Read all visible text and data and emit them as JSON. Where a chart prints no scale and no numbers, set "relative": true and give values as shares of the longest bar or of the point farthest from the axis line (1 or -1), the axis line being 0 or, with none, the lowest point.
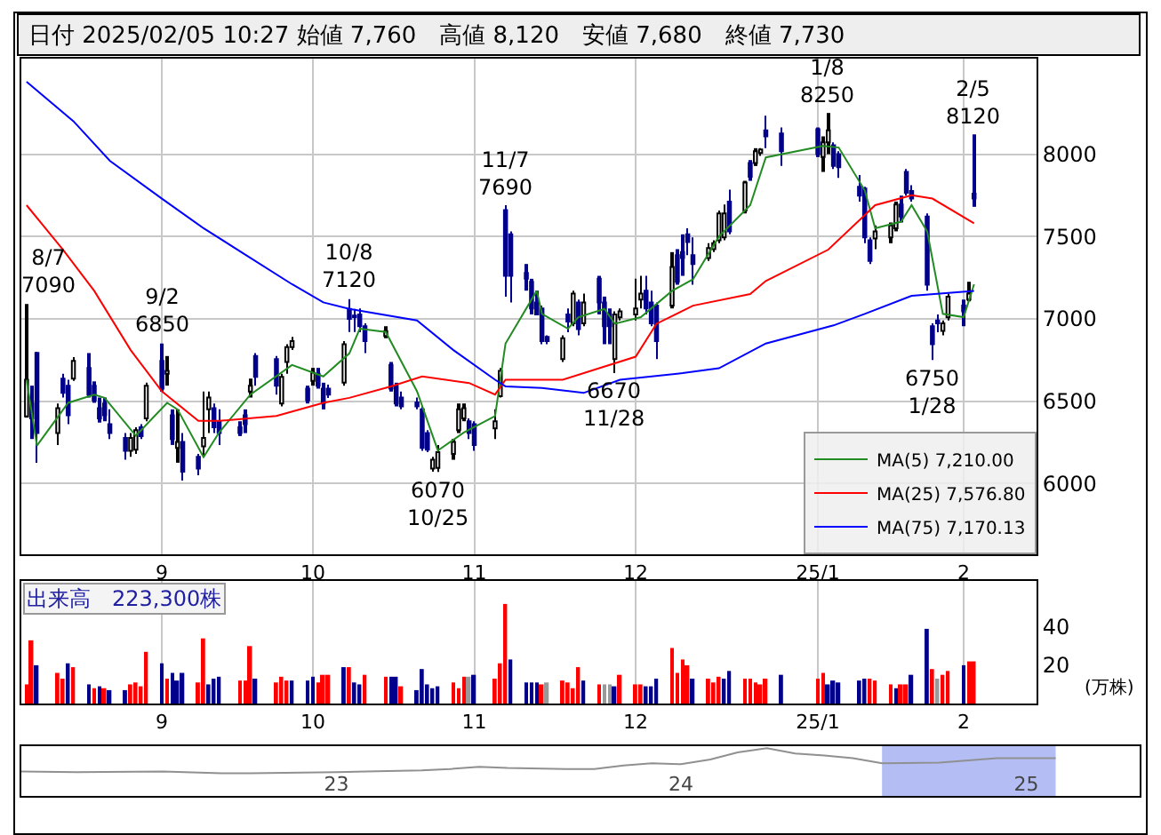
{
  "chart_data": [
    {
      "type": "candlestick",
      "title": "日付 2025/02/05 10:27 始値 7,760　高値 8,120　安値 7,680　終値 7,730",
      "x": [
        "2024-08-07",
        "2024-08-08",
        "2024-08-09",
        "2024-08-13",
        "2024-08-14",
        "2024-08-15",
        "2024-08-16",
        "2024-08-19",
        "2024-08-20",
        "2024-08-21",
        "2024-08-22",
        "2024-08-23",
        "2024-08-26",
        "2024-08-27",
        "2024-08-28",
        "2024-08-29",
        "2024-08-30",
        "2024-09-02",
        "2024-09-03",
        "2024-09-04",
        "2024-09-05",
        "2024-09-06",
        "2024-09-09",
        "2024-09-10",
        "2024-09-11",
        "2024-09-12",
        "2024-09-13",
        "2024-09-17",
        "2024-09-18",
        "2024-09-19",
        "2024-09-20",
        "2024-09-24",
        "2024-09-25",
        "2024-09-26",
        "2024-09-27",
        "2024-09-30",
        "2024-10-01",
        "2024-10-02",
        "2024-10-03",
        "2024-10-04",
        "2024-10-07",
        "2024-10-08",
        "2024-10-09",
        "2024-10-10",
        "2024-10-11",
        "2024-10-15",
        "2024-10-16",
        "2024-10-17",
        "2024-10-18",
        "2024-10-21",
        "2024-10-22",
        "2024-10-23",
        "2024-10-24",
        "2024-10-25",
        "2024-10-28",
        "2024-10-29",
        "2024-10-30",
        "2024-10-31",
        "2024-11-01",
        "2024-11-05",
        "2024-11-06",
        "2024-11-07",
        "2024-11-08",
        "2024-11-11",
        "2024-11-12",
        "2024-11-13",
        "2024-11-14",
        "2024-11-15",
        "2024-11-18",
        "2024-11-19",
        "2024-11-20",
        "2024-11-21",
        "2024-11-22",
        "2024-11-25",
        "2024-11-26",
        "2024-11-27",
        "2024-11-28",
        "2024-11-29",
        "2024-12-02",
        "2024-12-03",
        "2024-12-04",
        "2024-12-05",
        "2024-12-06",
        "2024-12-09",
        "2024-12-10",
        "2024-12-11",
        "2024-12-12",
        "2024-12-13",
        "2024-12-16",
        "2024-12-17",
        "2024-12-18",
        "2024-12-19",
        "2024-12-20",
        "2024-12-23",
        "2024-12-24",
        "2024-12-25",
        "2024-12-26",
        "2024-12-27",
        "2024-12-30",
        "2025-01-06",
        "2025-01-07",
        "2025-01-08",
        "2025-01-09",
        "2025-01-10",
        "2025-01-14",
        "2025-01-15",
        "2025-01-16",
        "2025-01-17",
        "2025-01-20",
        "2025-01-21",
        "2025-01-22",
        "2025-01-23",
        "2025-01-24",
        "2025-01-27",
        "2025-01-28",
        "2025-01-29",
        "2025-01-30",
        "2025-01-31",
        "2025-02-03",
        "2025-02-04",
        "2025-02-05"
      ],
      "ohlc": [
        [
          6407,
          7090,
          6400,
          6630
        ],
        [
          6486,
          6594,
          6270,
          6396
        ],
        [
          6793,
          6800,
          6125,
          6306
        ],
        [
          6306,
          6486,
          6234,
          6457
        ],
        [
          6637,
          6666,
          6522,
          6551
        ],
        [
          6594,
          6630,
          6360,
          6414
        ],
        [
          6637,
          6767,
          6623,
          6745
        ],
        [
          6702,
          6792,
          6522,
          6540
        ],
        [
          6594,
          6620,
          6490,
          6504
        ],
        [
          6457,
          6522,
          6370,
          6396
        ],
        [
          6486,
          6522,
          6378,
          6414
        ],
        [
          6360,
          6450,
          6270,
          6306
        ],
        [
          6277,
          6306,
          6144,
          6198
        ],
        [
          6198,
          6306,
          6162,
          6277
        ],
        [
          6205,
          6342,
          6180,
          6324
        ],
        [
          6342,
          6360,
          6270,
          6288
        ],
        [
          6396,
          6612,
          6378,
          6594
        ],
        [
          6745,
          6850,
          6558,
          6576
        ],
        [
          6666,
          6774,
          6594,
          6684
        ],
        [
          6414,
          6450,
          6234,
          6270
        ],
        [
          6216,
          6450,
          6126,
          6252
        ],
        [
          6252,
          6306,
          6018,
          6072
        ],
        [
          6162,
          6180,
          6050,
          6090
        ],
        [
          6226,
          6558,
          6162,
          6277
        ],
        [
          6450,
          6558,
          6306,
          6522
        ],
        [
          6457,
          6486,
          6306,
          6342
        ],
        [
          6378,
          6450,
          6234,
          6306
        ],
        [
          6342,
          6378,
          6288,
          6306
        ],
        [
          6414,
          6450,
          6306,
          6360
        ],
        [
          6558,
          6637,
          6522,
          6594
        ],
        [
          6774,
          6792,
          6594,
          6648
        ],
        [
          6756,
          6774,
          6540,
          6594
        ],
        [
          6486,
          6666,
          6468,
          6648
        ],
        [
          6738,
          6846,
          6666,
          6828
        ],
        [
          6828,
          6890,
          6810,
          6864
        ],
        [
          6576,
          6594,
          6486,
          6504
        ],
        [
          6623,
          6702,
          6594,
          6673
        ],
        [
          6666,
          6702,
          6576,
          6594
        ],
        [
          6576,
          6612,
          6450,
          6486
        ],
        [
          6576,
          6600,
          6520,
          6540
        ],
        [
          6612,
          6864,
          6594,
          6846
        ],
        [
          7060,
          7120,
          6920,
          7000
        ],
        [
          7020,
          7060,
          6920,
          7010
        ],
        [
          7027,
          7063,
          6918,
          6955
        ],
        [
          6955,
          6973,
          6792,
          6864
        ],
        [
          6896,
          6955,
          6882,
          6925
        ],
        [
          6720,
          6738,
          6558,
          6576
        ],
        [
          6594,
          6612,
          6468,
          6486
        ],
        [
          6522,
          6558,
          6450,
          6468
        ],
        [
          6493,
          6522,
          6450,
          6468
        ],
        [
          6450,
          6468,
          6198,
          6216
        ],
        [
          6306,
          6324,
          6190,
          6205
        ],
        [
          6090,
          6162,
          6072,
          6144
        ],
        [
          6094,
          6234,
          6070,
          6190
        ],
        [
          6180,
          6270,
          6144,
          6252
        ],
        [
          6324,
          6486,
          6306,
          6450
        ],
        [
          6396,
          6486,
          6378,
          6457
        ],
        [
          6378,
          6396,
          6270,
          6306
        ],
        [
          6360,
          6378,
          6198,
          6234
        ],
        [
          6334,
          6450,
          6270,
          6378
        ],
        [
          6530,
          6702,
          6522,
          6684
        ],
        [
          7660,
          7690,
          7135,
          7261
        ],
        [
          7513,
          7531,
          7099,
          7261
        ],
        [
          7279,
          7333,
          7171,
          7243
        ],
        [
          7225,
          7243,
          7027,
          7063
        ],
        [
          7099,
          7171,
          7027,
          7027
        ],
        [
          7063,
          7081,
          6846,
          6864
        ],
        [
          6890,
          6900,
          6846,
          6864
        ],
        [
          6756,
          6900,
          6738,
          6882
        ],
        [
          7027,
          7063,
          6918,
          6983
        ],
        [
          6973,
          7171,
          6955,
          7153
        ],
        [
          7099,
          7117,
          6900,
          6937
        ],
        [
          6973,
          7153,
          6955,
          7099
        ],
        [
          7243,
          7261,
          7027,
          7099
        ],
        [
          7099,
          7135,
          6846,
          6955
        ],
        [
          7027,
          7063,
          6846,
          6955
        ],
        [
          6756,
          7045,
          6670,
          7027
        ],
        [
          7009,
          7063,
          6990,
          7045
        ],
        [
          7027,
          7243,
          6990,
          7063
        ],
        [
          7117,
          7261,
          7063,
          7153
        ],
        [
          7171,
          7261,
          7027,
          7063
        ],
        [
          7099,
          7171,
          6955,
          6973
        ],
        [
          7081,
          7099,
          6756,
          6864
        ],
        [
          7081,
          7405,
          7063,
          7315
        ],
        [
          7387,
          7423,
          7207,
          7225
        ],
        [
          7405,
          7513,
          7261,
          7369
        ],
        [
          7513,
          7550,
          7387,
          7466
        ],
        [
          7387,
          7495,
          7207,
          7333
        ],
        [
          7369,
          7459,
          7351,
          7430
        ],
        [
          7423,
          7477,
          7405,
          7459
        ],
        [
          7477,
          7658,
          7459,
          7640
        ],
        [
          7495,
          7694,
          7477,
          7640
        ],
        [
          7712,
          7784,
          7513,
          7531
        ],
        [
          7658,
          7838,
          7640,
          7827
        ],
        [
          7946,
          7964,
          7838,
          7863
        ],
        [
          7946,
          8036,
          7928,
          8018
        ],
        [
          8007,
          8036,
          7990,
          8029
        ],
        [
          8144,
          8234,
          8036,
          8108
        ],
        [
          8126,
          8162,
          7928,
          8018
        ],
        [
          8151,
          8162,
          7982,
          8000
        ],
        [
          7982,
          8108,
          7892,
          8072
        ],
        [
          8072,
          8250,
          8000,
          8144
        ],
        [
          8054,
          8072,
          7910,
          7928
        ],
        [
          8000,
          8018,
          7856,
          7921
        ],
        [
          7802,
          7874,
          7712,
          7748
        ],
        [
          7791,
          7802,
          7459,
          7495
        ],
        [
          7477,
          7495,
          7333,
          7351
        ],
        [
          7488,
          7567,
          7423,
          7531
        ],
        [
          7495,
          7585,
          7459,
          7567
        ],
        [
          7549,
          7712,
          7531,
          7694
        ],
        [
          7694,
          7748,
          7585,
          7621
        ],
        [
          7892,
          7910,
          7748,
          7766
        ],
        [
          7776,
          7812,
          7712,
          7730
        ],
        [
          7621,
          7640,
          7171,
          7207
        ],
        [
          6955,
          6973,
          6750,
          6846
        ],
        [
          6990,
          7027,
          6918,
          6973
        ],
        [
          6926,
          6990,
          6900,
          6973
        ],
        [
          7009,
          7153,
          6990,
          7135
        ],
        [
          7081,
          7117,
          6955,
          7045
        ],
        [
          7117,
          7225,
          7106,
          7153
        ],
        [
          7760,
          8120,
          7680,
          7730
        ]
      ],
      "series": [
        {
          "name": "MA(5) 7,210.00",
          "color": "#228b22",
          "type": "line",
          "x": [
            "2024-08-07",
            "2024-08-09",
            "2024-08-15",
            "2024-08-20",
            "2024-08-22",
            "2024-08-28",
            "2024-09-03",
            "2024-09-05",
            "2024-09-10",
            "2024-09-13",
            "2024-09-19",
            "2024-09-27",
            "2024-10-03",
            "2024-10-08",
            "2024-10-10",
            "2024-10-15",
            "2024-10-21",
            "2024-10-25",
            "2024-10-30",
            "2024-11-05",
            "2024-11-07",
            "2024-11-13",
            "2024-11-14",
            "2024-11-19",
            "2024-11-21",
            "2024-11-26",
            "2024-11-28",
            "2024-12-03",
            "2024-12-09",
            "2024-12-13",
            "2024-12-18",
            "2024-12-24",
            "2024-12-27",
            "2025-01-07",
            "2025-01-10",
            "2025-01-15",
            "2025-01-17",
            "2025-01-22",
            "2025-01-24",
            "2025-01-27",
            "2025-01-30",
            "2025-02-03",
            "2025-02-05"
          ],
          "values": [
            6630,
            6230,
            6490,
            6540,
            6520,
            6290,
            6490,
            6450,
            6160,
            6310,
            6540,
            6720,
            6650,
            6790,
            6940,
            6920,
            6560,
            6200,
            6310,
            6410,
            6850,
            7170,
            7030,
            6940,
            7010,
            7060,
            6970,
            7010,
            7170,
            7240,
            7500,
            7690,
            7980,
            8050,
            8040,
            7780,
            7550,
            7590,
            7690,
            7530,
            7030,
            7010,
            7210
          ]
        },
        {
          "name": "MA(25) 7,576.80",
          "color": "#ff0000",
          "type": "line",
          "x": [
            "2024-08-07",
            "2024-08-14",
            "2024-08-20",
            "2024-08-27",
            "2024-09-02",
            "2024-09-09",
            "2024-09-13",
            "2024-09-24",
            "2024-10-03",
            "2024-10-08",
            "2024-10-16",
            "2024-10-22",
            "2024-10-31",
            "2024-11-05",
            "2024-11-07",
            "2024-11-18",
            "2024-11-25",
            "2024-12-02",
            "2024-12-06",
            "2024-12-13",
            "2024-12-24",
            "2024-12-27",
            "2025-01-08",
            "2025-01-14",
            "2025-01-17",
            "2025-01-24",
            "2025-01-28",
            "2025-02-05"
          ],
          "values": [
            7690,
            7420,
            7170,
            6810,
            6560,
            6380,
            6380,
            6410,
            6490,
            6520,
            6590,
            6650,
            6610,
            6540,
            6630,
            6630,
            6700,
            6770,
            6970,
            7080,
            7150,
            7230,
            7420,
            7600,
            7690,
            7750,
            7730,
            7580
          ]
        },
        {
          "name": "MA(75) 7,170.13",
          "color": "#0000ff",
          "type": "line",
          "x": [
            "2024-08-07",
            "2024-08-16",
            "2024-08-23",
            "2024-09-02",
            "2024-09-10",
            "2024-09-18",
            "2024-09-27",
            "2024-10-03",
            "2024-10-08",
            "2024-10-21",
            "2024-10-28",
            "2024-11-05",
            "2024-11-07",
            "2024-11-14",
            "2024-11-22",
            "2024-11-29",
            "2024-12-11",
            "2024-12-18",
            "2024-12-27",
            "2025-01-09",
            "2025-01-15",
            "2025-01-24",
            "2025-02-05"
          ],
          "values": [
            8440,
            8200,
            7960,
            7730,
            7550,
            7390,
            7210,
            7100,
            7060,
            6990,
            6810,
            6630,
            6590,
            6580,
            6550,
            6630,
            6670,
            6700,
            6850,
            6960,
            7030,
            7140,
            7170
          ]
        }
      ],
      "annotations": [
        {
          "text": "8/7\n7090",
          "x": "2024-08-07",
          "y": 7090
        },
        {
          "text": "9/2\n6850",
          "x": "2024-09-02",
          "y": 6850
        },
        {
          "text": "10/8\n7120",
          "x": "2024-10-08",
          "y": 7120
        },
        {
          "text": "11/7\n7690",
          "x": "2024-11-07",
          "y": 7690
        },
        {
          "text": "1/8\n8250",
          "x": "2025-01-08",
          "y": 8250
        },
        {
          "text": "2/5\n8120",
          "x": "2025-02-05",
          "y": 8120
        },
        {
          "text": "6070\n10/25",
          "x": "2024-10-25",
          "y": 6070
        },
        {
          "text": "6670\n11/28",
          "x": "2024-11-28",
          "y": 6670
        },
        {
          "text": "6750\n1/28",
          "x": "2025-01-28",
          "y": 6750
        }
      ],
      "xlim": [
        "2024-08-06",
        "2025-02-17"
      ],
      "xticks": [
        {
          "value": "2024-09-02",
          "label": "9"
        },
        {
          "value": "2024-10-01",
          "label": "10"
        },
        {
          "value": "2024-11-01",
          "label": "11"
        },
        {
          "value": "2024-12-02",
          "label": "12"
        },
        {
          "value": "2025-01-06",
          "label": "25/1"
        },
        {
          "value": "2025-02-03",
          "label": "2"
        }
      ],
      "ylim": [
        5570,
        8580
      ],
      "yticks": [
        6000,
        6500,
        7000,
        7500,
        8000
      ],
      "grid": true,
      "legend": "bottom right"
    },
    {
      "type": "bar",
      "title": "出来高　223,300株",
      "ylabel": "(万株)",
      "x": [
        "2024-08-07",
        "2024-08-08",
        "2024-08-09",
        "2024-08-13",
        "2024-08-14",
        "2024-08-15",
        "2024-08-16",
        "2024-08-19",
        "2024-08-20",
        "2024-08-21",
        "2024-08-22",
        "2024-08-23",
        "2024-08-26",
        "2024-08-27",
        "2024-08-28",
        "2024-08-29",
        "2024-08-30",
        "2024-09-02",
        "2024-09-03",
        "2024-09-04",
        "2024-09-05",
        "2024-09-06",
        "2024-09-09",
        "2024-09-10",
        "2024-09-11",
        "2024-09-12",
        "2024-09-13",
        "2024-09-17",
        "2024-09-18",
        "2024-09-19",
        "2024-09-20",
        "2024-09-24",
        "2024-09-25",
        "2024-09-26",
        "2024-09-27",
        "2024-09-30",
        "2024-10-01",
        "2024-10-02",
        "2024-10-03",
        "2024-10-04",
        "2024-10-07",
        "2024-10-08",
        "2024-10-09",
        "2024-10-10",
        "2024-10-11",
        "2024-10-15",
        "2024-10-16",
        "2024-10-17",
        "2024-10-18",
        "2024-10-21",
        "2024-10-22",
        "2024-10-23",
        "2024-10-24",
        "2024-10-25",
        "2024-10-28",
        "2024-10-29",
        "2024-10-30",
        "2024-10-31",
        "2024-11-01",
        "2024-11-05",
        "2024-11-06",
        "2024-11-07",
        "2024-11-08",
        "2024-11-11",
        "2024-11-12",
        "2024-11-13",
        "2024-11-14",
        "2024-11-15",
        "2024-11-18",
        "2024-11-19",
        "2024-11-20",
        "2024-11-21",
        "2024-11-22",
        "2024-11-25",
        "2024-11-26",
        "2024-11-27",
        "2024-11-28",
        "2024-11-29",
        "2024-12-02",
        "2024-12-03",
        "2024-12-04",
        "2024-12-05",
        "2024-12-06",
        "2024-12-09",
        "2024-12-10",
        "2024-12-11",
        "2024-12-12",
        "2024-12-13",
        "2024-12-16",
        "2024-12-17",
        "2024-12-18",
        "2024-12-19",
        "2024-12-20",
        "2024-12-23",
        "2024-12-24",
        "2024-12-25",
        "2024-12-26",
        "2024-12-27",
        "2024-12-30",
        "2025-01-06",
        "2025-01-07",
        "2025-01-08",
        "2025-01-09",
        "2025-01-10",
        "2025-01-14",
        "2025-01-15",
        "2025-01-16",
        "2025-01-17",
        "2025-01-20",
        "2025-01-21",
        "2025-01-22",
        "2025-01-23",
        "2025-01-24",
        "2025-01-27",
        "2025-01-28",
        "2025-01-29",
        "2025-01-30",
        "2025-01-31",
        "2025-02-03",
        "2025-02-04",
        "2025-02-05"
      ],
      "values": [
        10,
        33,
        20,
        16,
        13,
        21,
        19,
        10,
        8,
        9,
        8,
        7,
        7,
        10,
        11,
        9,
        27,
        21,
        13,
        16,
        12,
        16,
        11,
        34,
        10,
        13,
        14,
        12,
        12,
        30,
        13,
        11,
        14,
        12,
        12,
        12,
        14,
        11,
        15,
        15,
        19,
        19,
        11,
        10,
        15,
        14,
        14,
        14,
        9,
        7,
        18,
        10,
        8,
        9,
        11,
        8,
        14,
        14,
        15,
        13,
        21,
        52,
        23,
        11,
        11,
        11,
        10,
        11,
        12,
        11,
        8,
        19,
        12,
        10,
        10,
        10,
        9,
        15,
        10,
        10,
        9,
        9,
        13,
        29,
        16,
        23,
        20,
        13,
        13,
        11,
        14,
        13,
        17,
        13,
        13,
        11,
        10,
        13,
        15,
        13,
        16,
        10,
        12,
        11,
        12,
        13,
        13,
        12,
        10,
        8,
        10,
        10,
        15,
        39,
        18,
        13,
        15,
        17,
        20,
        22,
        22
      ],
      "colors": [
        "#ff0000",
        "#ff0000",
        "#00008b",
        "#ff0000",
        "#ff0000",
        "#00008b",
        "#ff0000",
        "#00008b",
        "#ff0000",
        "#00008b",
        "#ff0000",
        "#00008b",
        "#00008b",
        "#ff0000",
        "#ff0000",
        "#ff0000",
        "#ff0000",
        "#00008b",
        "#ff0000",
        "#00008b",
        "#00008b",
        "#00008b",
        "#ff0000",
        "#ff0000",
        "#00008b",
        "#00008b",
        "#00008b",
        "#ff0000",
        "#ff0000",
        "#ff0000",
        "#00008b",
        "#ff0000",
        "#ff0000",
        "#ff0000",
        "#00008b",
        "#00008b",
        "#00008b",
        "#ff0000",
        "#ff0000",
        "#ff0000",
        "#00008b",
        "#ff0000",
        "#00008b",
        "#00008b",
        "#ff0000",
        "#ff0000",
        "#00008b",
        "#00008b",
        "#ff0000",
        "#00008b",
        "#00008b",
        "#00008b",
        "#00008b",
        "#00008b",
        "#ff0000",
        "#ff0000",
        "#ff0000",
        "#999999",
        "#00008b",
        "#ff0000",
        "#ff0000",
        "#ff0000",
        "#00008b",
        "#00008b",
        "#00008b",
        "#00008b",
        "#ff0000",
        "#999999",
        "#ff0000",
        "#ff0000",
        "#ff0000",
        "#ff0000",
        "#00008b",
        "#ff0000",
        "#999999",
        "#999999",
        "#00008b",
        "#ff0000",
        "#ff0000",
        "#ff0000",
        "#00008b",
        "#00008b",
        "#00008b",
        "#ff0000",
        "#ff0000",
        "#ff0000",
        "#ff0000",
        "#00008b",
        "#ff0000",
        "#ff0000",
        "#ff0000",
        "#00008b",
        "#00008b",
        "#ff0000",
        "#ff0000",
        "#ff0000",
        "#ff0000",
        "#ff0000",
        "#00008b",
        "#ff0000",
        "#ff0000",
        "#00008b",
        "#00008b",
        "#00008b",
        "#00008b",
        "#00008b",
        "#ff0000",
        "#ff0000",
        "#ff0000",
        "#00008b",
        "#ff0000",
        "#ff0000",
        "#00008b",
        "#00008b",
        "#ff0000",
        "#999999",
        "#ff0000",
        "#ff0000",
        "#00008b",
        "#ff0000",
        "#ff0000"
      ],
      "xlim": [
        "2024-08-06",
        "2025-02-17"
      ],
      "xticks": [
        {
          "value": "2024-09-02",
          "label": "9"
        },
        {
          "value": "2024-10-01",
          "label": "10"
        },
        {
          "value": "2024-11-01",
          "label": "11"
        },
        {
          "value": "2024-12-02",
          "label": "12"
        },
        {
          "value": "2025-01-06",
          "label": "25/1"
        },
        {
          "value": "2025-02-03",
          "label": "2"
        }
      ],
      "ylim": [
        0,
        64
      ],
      "yticks": [
        20,
        40
      ],
      "grid": "x"
    },
    {
      "type": "line",
      "relative": true,
      "color": "#909090",
      "x": [
        "2022-02",
        "2022-04",
        "2022-07",
        "2022-09",
        "2022-10",
        "2023-01",
        "2023-02",
        "2023-04",
        "2023-05",
        "2023-06",
        "2023-07",
        "2023-09",
        "2023-10",
        "2023-11",
        "2023-12",
        "2024-01",
        "2024-02",
        "2024-03",
        "2024-04",
        "2024-05",
        "2024-06",
        "2024-07",
        "2024-08",
        "2024-10",
        "2024-12",
        "2025-02"
      ],
      "values": [
        0.07,
        0.05,
        0.07,
        0,
        0,
        0.05,
        0.07,
        0.12,
        0.17,
        0.26,
        0.21,
        0.17,
        0.17,
        0.31,
        0.4,
        0.36,
        0.55,
        0.83,
        1,
        0.79,
        0.71,
        0.6,
        0.4,
        0.43,
        0.6,
        0.6
      ],
      "xlim": [
        "2022-02",
        "2025-05"
      ],
      "xticks": [
        {
          "value": "2023-01",
          "label": "23"
        },
        {
          "value": "2024-01",
          "label": "24"
        },
        {
          "value": "2025-01",
          "label": "25"
        }
      ],
      "bands": [
        {
          "axis": "x",
          "from": "2024-08",
          "to": "2025-02",
          "color": "#b4bef5"
        }
      ]
    }
  ]
}
